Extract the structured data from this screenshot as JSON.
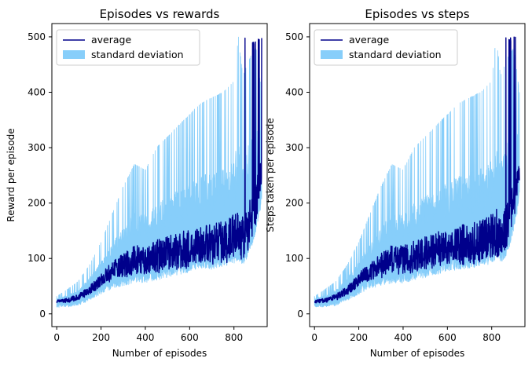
{
  "chart_data": [
    {
      "type": "line",
      "title": "Episodes vs rewards",
      "xlabel": "Number of episodes",
      "ylabel": "Reward per episode",
      "xlim": [
        -22,
        950
      ],
      "ylim": [
        -23,
        524
      ],
      "xticks": [
        "0",
        "200",
        "400",
        "600",
        "800"
      ],
      "yticks": [
        "0",
        "100",
        "200",
        "300",
        "400",
        "500"
      ],
      "xtick_values": [
        0,
        200,
        400,
        600,
        800
      ],
      "ytick_values": [
        0,
        100,
        200,
        300,
        400,
        500
      ],
      "grid": false,
      "legend_position": "top-left",
      "legend": [
        "average",
        "standard deviation"
      ],
      "colors": {
        "average": "#00008b",
        "standard deviation": "#87cefa"
      },
      "series": [
        {
          "name": "average",
          "x": [
            0,
            50,
            100,
            150,
            200,
            250,
            300,
            350,
            400,
            450,
            500,
            550,
            600,
            650,
            700,
            750,
            800,
            820,
            840,
            860,
            880,
            900,
            925
          ],
          "y": [
            22,
            24,
            30,
            42,
            60,
            75,
            85,
            95,
            95,
            100,
            105,
            110,
            115,
            120,
            120,
            125,
            135,
            140,
            130,
            150,
            175,
            200,
            260
          ]
        },
        {
          "name": "standard deviation",
          "x": [
            0,
            50,
            100,
            150,
            200,
            250,
            300,
            350,
            400,
            450,
            500,
            550,
            600,
            650,
            700,
            750,
            800,
            820,
            840,
            860,
            880,
            900,
            925
          ],
          "low": [
            12,
            12,
            15,
            25,
            35,
            45,
            50,
            55,
            55,
            60,
            65,
            70,
            75,
            80,
            80,
            85,
            90,
            95,
            90,
            100,
            120,
            150,
            200
          ],
          "high": [
            32,
            45,
            60,
            90,
            130,
            180,
            230,
            270,
            260,
            300,
            320,
            340,
            360,
            380,
            390,
            400,
            420,
            500,
            430,
            450,
            470,
            480,
            400
          ]
        }
      ]
    },
    {
      "type": "line",
      "title": "Episodes vs steps",
      "xlabel": "Number of episodes",
      "ylabel": "Steps taken per episode",
      "xlim": [
        -22,
        950
      ],
      "ylim": [
        -23,
        524
      ],
      "xticks": [
        "0",
        "200",
        "400",
        "600",
        "800"
      ],
      "yticks": [
        "0",
        "100",
        "200",
        "300",
        "400",
        "500"
      ],
      "xtick_values": [
        0,
        200,
        400,
        600,
        800
      ],
      "ytick_values": [
        0,
        100,
        200,
        300,
        400,
        500
      ],
      "grid": false,
      "legend_position": "top-left",
      "legend": [
        "average",
        "standard deviation"
      ],
      "colors": {
        "average": "#00008b",
        "standard deviation": "#87cefa"
      },
      "series": [
        {
          "name": "average",
          "x": [
            0,
            50,
            100,
            150,
            200,
            250,
            300,
            350,
            400,
            450,
            500,
            550,
            600,
            650,
            700,
            750,
            800,
            820,
            840,
            860,
            880,
            900,
            925
          ],
          "y": [
            22,
            24,
            30,
            42,
            60,
            75,
            85,
            95,
            95,
            100,
            105,
            110,
            115,
            120,
            120,
            125,
            135,
            140,
            130,
            150,
            175,
            200,
            260
          ]
        },
        {
          "name": "standard deviation",
          "x": [
            0,
            50,
            100,
            150,
            200,
            250,
            300,
            350,
            400,
            450,
            500,
            550,
            600,
            650,
            700,
            750,
            800,
            820,
            840,
            860,
            880,
            900,
            925
          ],
          "low": [
            12,
            12,
            15,
            25,
            35,
            45,
            50,
            55,
            55,
            60,
            65,
            70,
            75,
            80,
            80,
            85,
            90,
            95,
            90,
            100,
            120,
            150,
            200
          ],
          "high": [
            32,
            45,
            60,
            90,
            130,
            180,
            230,
            270,
            260,
            300,
            320,
            340,
            360,
            380,
            390,
            400,
            420,
            500,
            430,
            450,
            470,
            480,
            400
          ]
        }
      ]
    }
  ]
}
